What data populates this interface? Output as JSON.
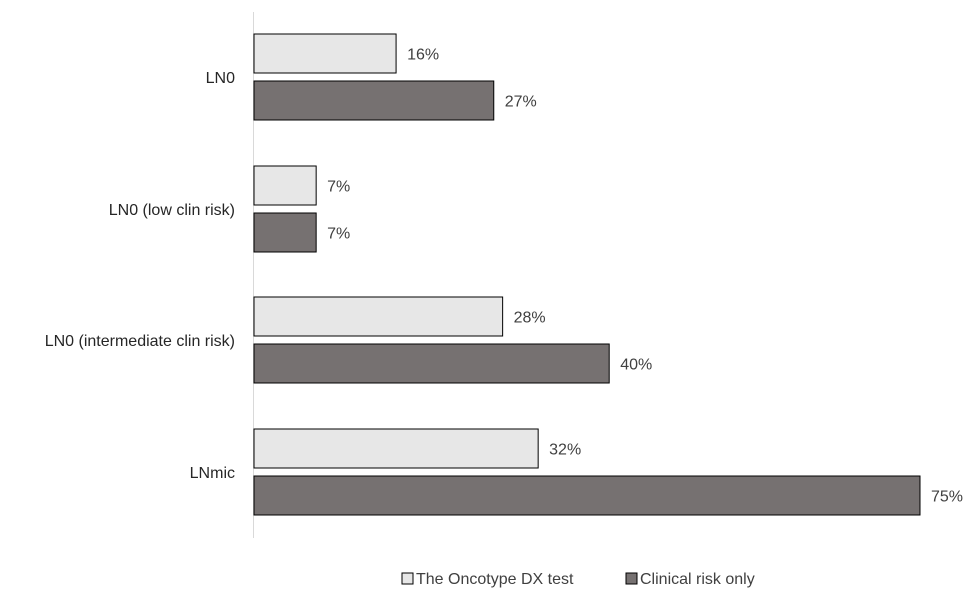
{
  "chart_data": {
    "type": "bar",
    "orientation": "horizontal",
    "categories": [
      "LN0",
      "LN0 (low clin risk)",
      "LN0 (intermediate clin risk)",
      "LNmic"
    ],
    "series": [
      {
        "name": "The Oncotype DX test",
        "values": [
          16,
          7,
          28,
          32
        ],
        "labels": [
          "16%",
          "7%",
          "28%",
          "32%"
        ],
        "color": "#e7e7e7"
      },
      {
        "name": "Clinical risk only",
        "values": [
          27,
          7,
          40,
          75
        ],
        "labels": [
          "27%",
          "7%",
          "40%",
          "75%"
        ],
        "color": "#767171"
      }
    ],
    "xlim": [
      0,
      75
    ],
    "grid": false,
    "legend_position": "bottom"
  }
}
